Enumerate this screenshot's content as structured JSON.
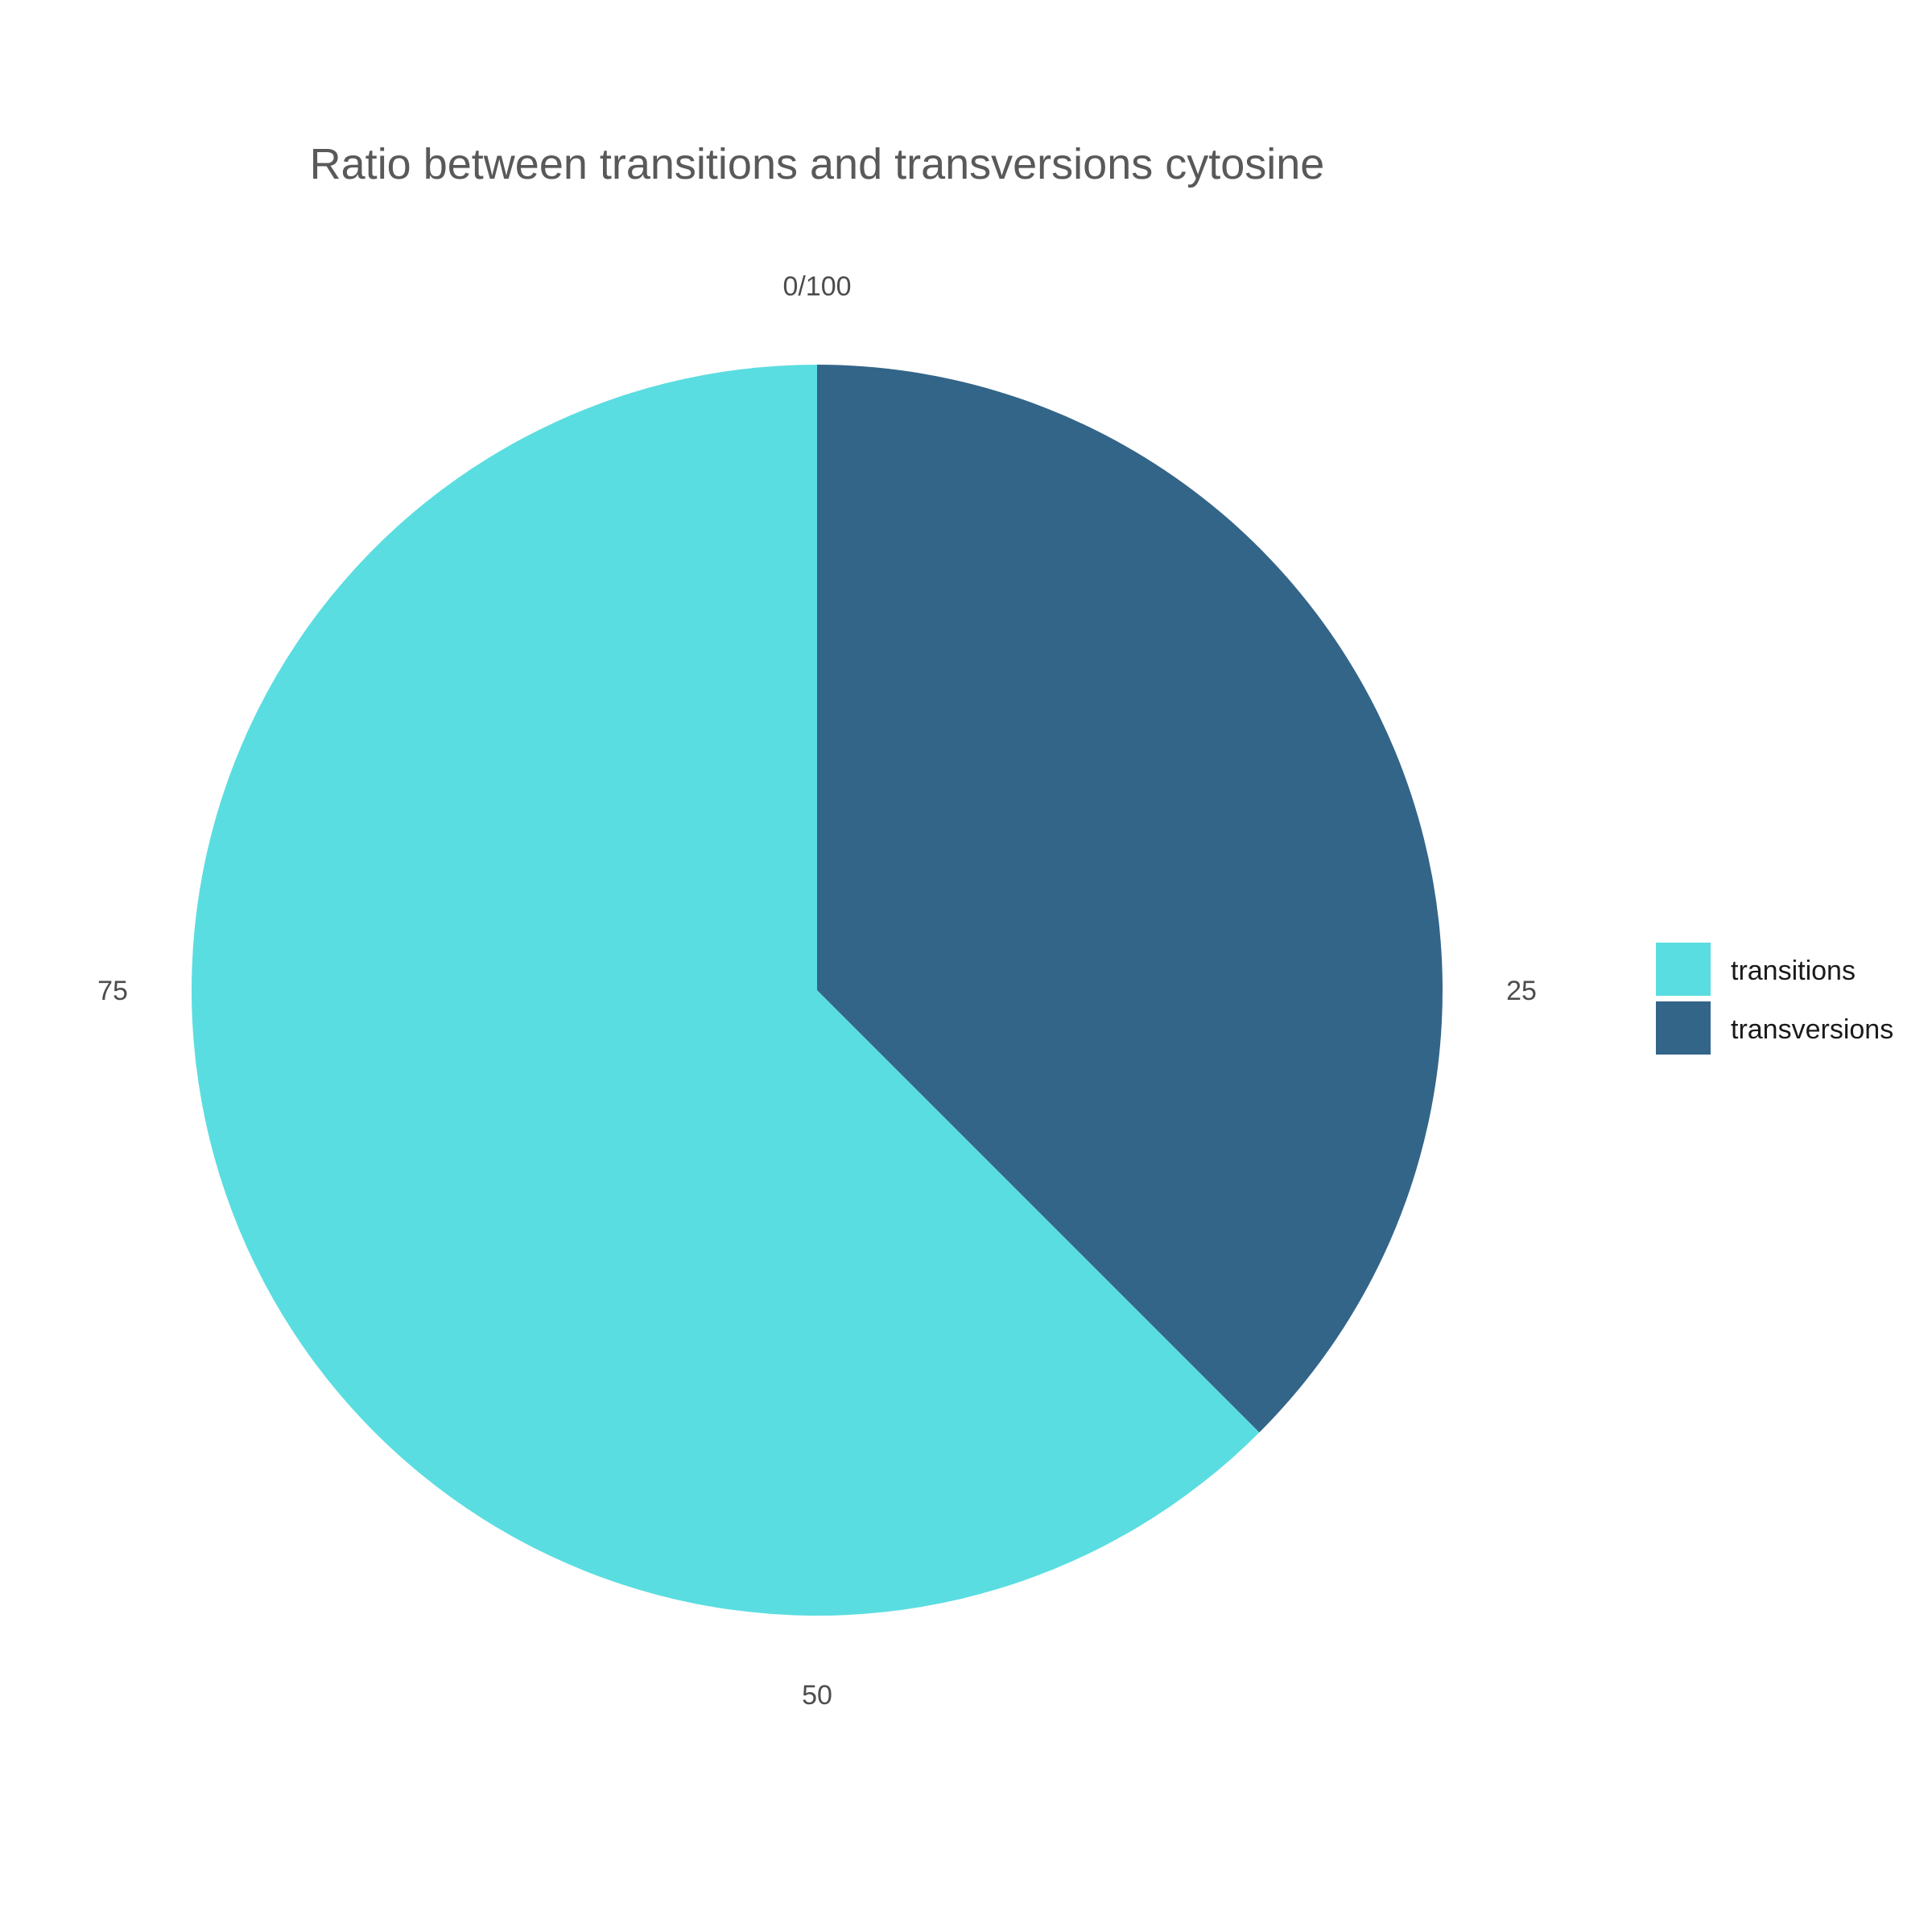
{
  "chart_data": {
    "type": "pie",
    "title": "Ratio between transitions and transversions cytosine",
    "slices": [
      {
        "name": "transitions",
        "value": 62.5,
        "color": "#5adde0"
      },
      {
        "name": "transversions",
        "value": 37.5,
        "color": "#336589"
      }
    ],
    "start_angle_deg": 0,
    "direction": "counterclockwise",
    "ticks": [
      {
        "value": 0,
        "label": "0/100"
      },
      {
        "value": 25,
        "label": "25"
      },
      {
        "value": 50,
        "label": "50"
      },
      {
        "value": 75,
        "label": "75"
      }
    ],
    "legend_position": "right"
  }
}
